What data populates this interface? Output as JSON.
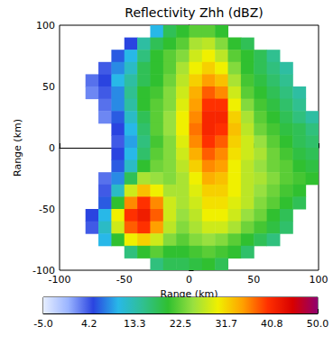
{
  "chart_data": {
    "type": "heatmap",
    "title": "Reflectivity Zhh (dBZ)",
    "x_label": "Range (km)",
    "y_label": "Range (km)",
    "xlim": [
      -100,
      100
    ],
    "xticks": [
      -100,
      -50,
      0,
      50,
      100
    ],
    "ylim": [
      -100,
      100
    ],
    "yticks": [
      -100,
      -50,
      0,
      50,
      100
    ],
    "cells": {
      "x": [
        -95,
        -85,
        -75,
        -65,
        -55,
        -45,
        -35,
        -25,
        -15,
        -5,
        5,
        15,
        25,
        35,
        45,
        55,
        65,
        75,
        85,
        95
      ],
      "y": [
        95,
        85,
        75,
        65,
        55,
        45,
        35,
        25,
        15,
        5,
        -5,
        -15,
        -25,
        -35,
        -45,
        -55,
        -65,
        -75,
        -85,
        -95
      ],
      "values": [
        [
          null,
          null,
          null,
          null,
          null,
          null,
          null,
          10,
          18,
          20,
          22,
          22,
          20,
          null,
          null,
          null,
          null,
          null,
          null,
          null
        ],
        [
          null,
          null,
          null,
          null,
          null,
          5,
          14,
          18,
          20,
          22,
          26,
          27,
          24,
          20,
          18,
          null,
          null,
          null,
          null,
          null
        ],
        [
          null,
          null,
          null,
          null,
          6,
          10,
          16,
          20,
          22,
          24,
          28,
          30,
          27,
          22,
          20,
          18,
          15,
          null,
          null,
          null
        ],
        [
          null,
          null,
          null,
          4,
          8,
          12,
          18,
          20,
          22,
          26,
          30,
          32,
          30,
          24,
          20,
          18,
          16,
          14,
          null,
          null
        ],
        [
          null,
          null,
          3,
          5,
          10,
          14,
          18,
          20,
          23,
          27,
          32,
          35,
          33,
          26,
          21,
          19,
          17,
          15,
          null,
          null
        ],
        [
          null,
          null,
          2,
          4,
          8,
          15,
          20,
          21,
          24,
          28,
          34,
          38,
          36,
          28,
          22,
          20,
          18,
          16,
          14,
          null
        ],
        [
          null,
          null,
          null,
          3,
          8,
          14,
          20,
          22,
          24,
          29,
          35,
          40,
          40,
          30,
          24,
          21,
          19,
          17,
          15,
          null
        ],
        [
          null,
          null,
          null,
          2,
          6,
          12,
          18,
          22,
          25,
          30,
          36,
          41,
          41,
          32,
          26,
          22,
          20,
          18,
          16,
          14
        ],
        [
          null,
          null,
          null,
          null,
          5,
          10,
          17,
          22,
          25,
          30,
          37,
          41,
          40,
          33,
          27,
          23,
          21,
          19,
          18,
          16
        ],
        [
          null,
          null,
          null,
          null,
          4,
          9,
          16,
          21,
          24,
          29,
          36,
          40,
          38,
          32,
          28,
          25,
          22,
          20,
          18,
          17
        ],
        [
          null,
          null,
          null,
          null,
          5,
          10,
          17,
          22,
          24,
          28,
          34,
          38,
          36,
          31,
          28,
          26,
          23,
          21,
          19,
          18
        ],
        [
          null,
          null,
          null,
          null,
          6,
          12,
          20,
          23,
          24,
          27,
          32,
          36,
          35,
          30,
          27,
          25,
          23,
          22,
          20,
          19
        ],
        [
          null,
          null,
          null,
          3,
          8,
          18,
          26,
          25,
          24,
          26,
          30,
          34,
          33,
          30,
          27,
          26,
          24,
          22,
          21,
          20
        ],
        [
          null,
          null,
          null,
          4,
          12,
          28,
          33,
          30,
          26,
          26,
          29,
          32,
          32,
          30,
          27,
          25,
          23,
          21,
          20,
          null
        ],
        [
          null,
          null,
          null,
          6,
          20,
          36,
          40,
          36,
          28,
          26,
          28,
          31,
          31,
          29,
          27,
          24,
          22,
          20,
          18,
          null
        ],
        [
          null,
          null,
          5,
          10,
          30,
          40,
          42,
          38,
          28,
          25,
          27,
          30,
          30,
          28,
          25,
          23,
          20,
          18,
          null,
          null
        ],
        [
          null,
          null,
          4,
          12,
          28,
          38,
          40,
          35,
          27,
          24,
          26,
          28,
          28,
          26,
          23,
          21,
          19,
          17,
          null,
          null
        ],
        [
          null,
          null,
          null,
          10,
          20,
          30,
          32,
          28,
          24,
          22,
          24,
          25,
          24,
          22,
          20,
          18,
          16,
          null,
          null,
          null
        ],
        [
          null,
          null,
          null,
          null,
          null,
          16,
          20,
          22,
          20,
          20,
          21,
          22,
          21,
          20,
          17,
          null,
          null,
          null,
          null,
          null
        ],
        [
          null,
          null,
          null,
          null,
          null,
          null,
          null,
          16,
          18,
          18,
          19,
          20,
          18,
          null,
          null,
          null,
          null,
          null,
          null,
          null
        ]
      ]
    },
    "colorbar": {
      "range": [
        -5,
        50
      ],
      "ticks": [
        {
          "value": -5,
          "label": "-5.0"
        },
        4.2,
        13.3,
        22.5,
        31.7,
        40.8,
        {
          "value": 50,
          "label": "50.0"
        }
      ]
    }
  }
}
